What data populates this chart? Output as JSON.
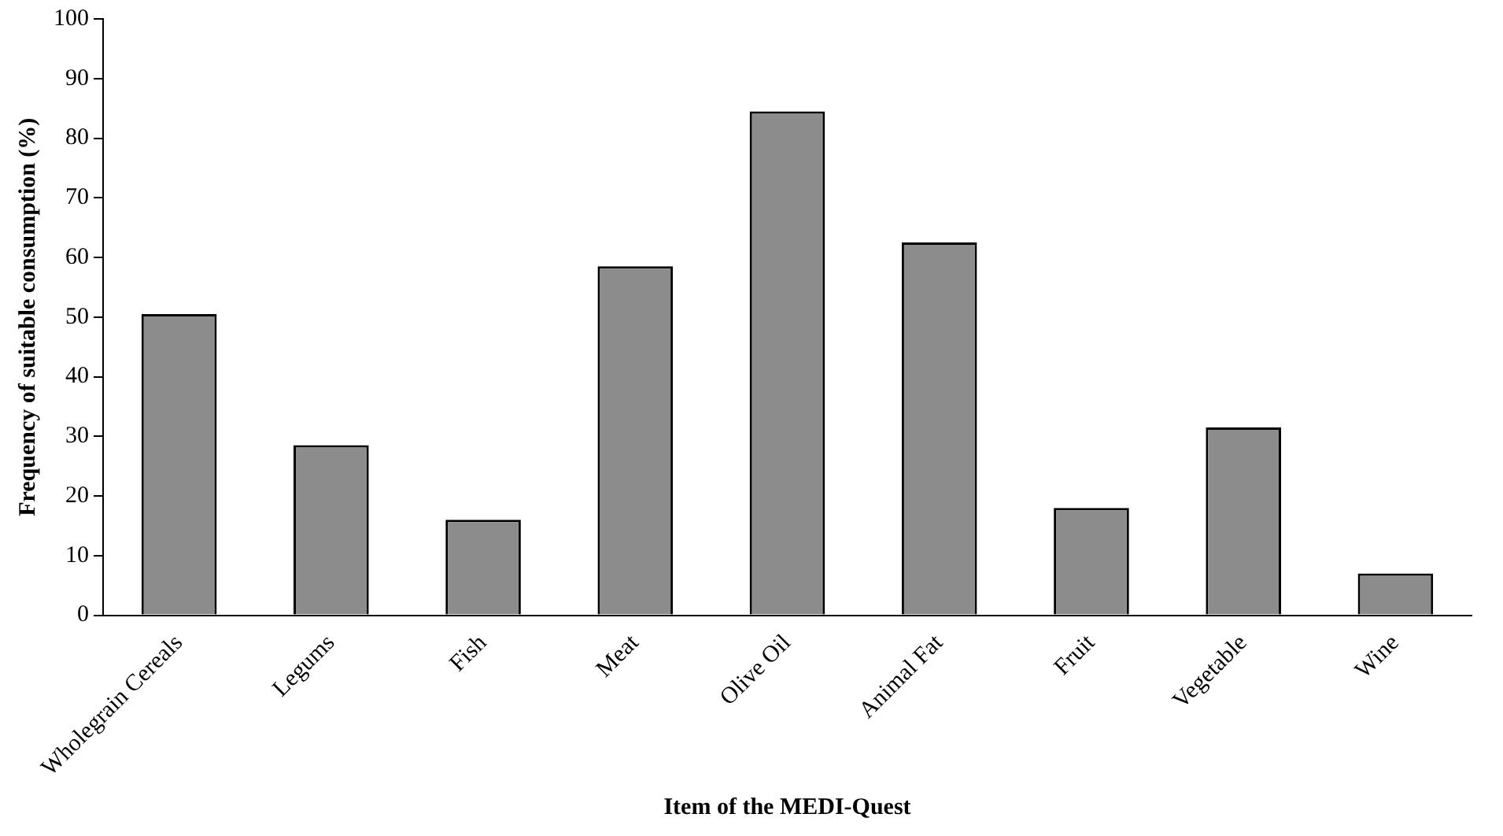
{
  "chart_data": {
    "type": "bar",
    "xlabel": "Item of the MEDI-Quest",
    "ylabel": "Frequency of suitable consumption (%)",
    "categories": [
      "Wholegrain Cereals",
      "Legums",
      "Fish",
      "Meat",
      "Olive Oil",
      "Animal Fat",
      "Fruit",
      "Vegetable",
      "Wine"
    ],
    "values": [
      50.5,
      28.5,
      16,
      58.5,
      84.5,
      62.5,
      18,
      31.5,
      7
    ],
    "color": "#8c8c8c",
    "ylim": [
      0,
      100
    ],
    "yticks": [
      0,
      10,
      20,
      30,
      40,
      50,
      60,
      70,
      80,
      90,
      100
    ],
    "grid": false,
    "legend": false
  }
}
